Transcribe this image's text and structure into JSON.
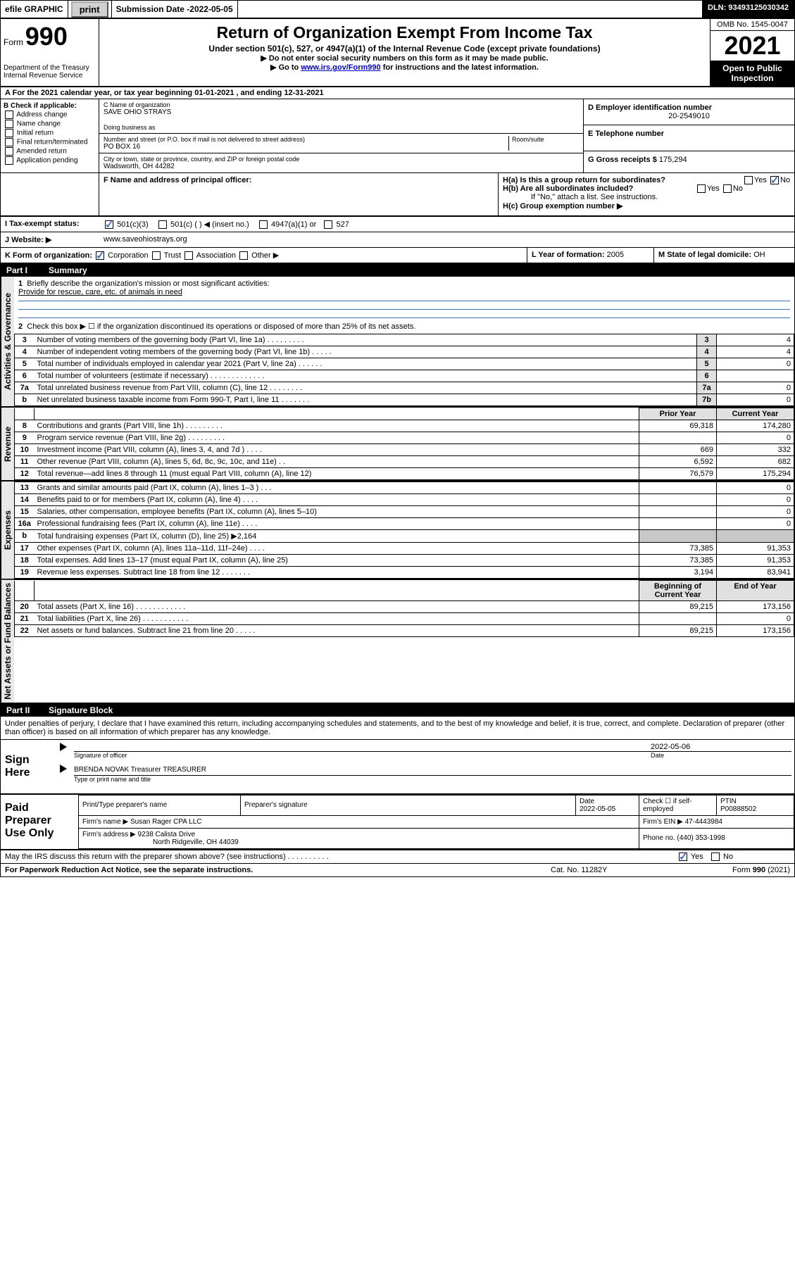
{
  "topbar": {
    "efile": "efile GRAPHIC",
    "print": "print",
    "subdate_label": "Submission Date - ",
    "subdate": "2022-05-05",
    "dln": "DLN: 93493125030342"
  },
  "header": {
    "form_word": "Form",
    "form_num": "990",
    "dept": "Department of the Treasury",
    "irs": "Internal Revenue Service",
    "title": "Return of Organization Exempt From Income Tax",
    "sub": "Under section 501(c), 527, or 4947(a)(1) of the Internal Revenue Code (except private foundations)",
    "inst1": "▶ Do not enter social security numbers on this form as it may be made public.",
    "inst2a": "▶ Go to ",
    "inst2link": "www.irs.gov/Form990",
    "inst2b": " for instructions and the latest information.",
    "omb": "OMB No. 1545-0047",
    "year": "2021",
    "open": "Open to Public Inspection"
  },
  "line_a": "For the 2021 calendar year, or tax year beginning 01-01-2021   , and ending 12-31-2021",
  "box_b": {
    "label": "B Check if applicable:",
    "opts": [
      "Address change",
      "Name change",
      "Initial return",
      "Final return/terminated",
      "Amended return",
      "Application pending"
    ]
  },
  "box_c": {
    "name_label": "C Name of organization",
    "name": "SAVE OHIO STRAYS",
    "dba_label": "Doing business as",
    "addr_label": "Number and street (or P.O. box if mail is not delivered to street address)",
    "room_label": "Room/suite",
    "addr": "PO BOX 16",
    "city_label": "City or town, state or province, country, and ZIP or foreign postal code",
    "city": "Wadsworth, OH  44282"
  },
  "box_d": {
    "label": "D Employer identification number",
    "val": "20-2549010"
  },
  "box_e": {
    "label": "E Telephone number"
  },
  "box_g": {
    "label": "G Gross receipts $",
    "val": "175,294"
  },
  "box_f": "F  Name and address of principal officer:",
  "box_h": {
    "ha": "H(a)  Is this a group return for subordinates?",
    "hb": "H(b)  Are all subordinates included?",
    "hb_note": "If \"No,\" attach a list. See instructions.",
    "hc": "H(c)  Group exemption number ▶"
  },
  "line_i": {
    "label": "I   Tax-exempt status:",
    "o1": "501(c)(3)",
    "o2": "501(c) (  ) ◀ (insert no.)",
    "o3": "4947(a)(1) or",
    "o4": "527"
  },
  "line_j": {
    "label": "J   Website: ▶",
    "val": "www.saveohiostrays.org"
  },
  "line_k": {
    "label": "K Form of organization:",
    "o1": "Corporation",
    "o2": "Trust",
    "o3": "Association",
    "o4": "Other ▶"
  },
  "line_l": {
    "label": "L Year of formation:",
    "val": "2005"
  },
  "line_m": {
    "label": "M State of legal domicile:",
    "val": "OH"
  },
  "part1": {
    "label": "Part I",
    "title": "Summary"
  },
  "summary": {
    "q1": "Briefly describe the organization's mission or most significant activities:",
    "q1a": "Provide for rescue, care, etc. of animals in need",
    "q2": "Check this box ▶ ☐  if the organization discontinued its operations or disposed of more than 25% of its net assets.",
    "rows_ag": [
      {
        "n": "3",
        "t": "Number of voting members of the governing body (Part VI, line 1a)   .   .   .   .   .   .   .   .   .",
        "b": "3",
        "v": "4"
      },
      {
        "n": "4",
        "t": "Number of independent voting members of the governing body (Part VI, line 1b)   .   .   .   .   .",
        "b": "4",
        "v": "4"
      },
      {
        "n": "5",
        "t": "Total number of individuals employed in calendar year 2021 (Part V, line 2a)   .   .   .   .   .   .",
        "b": "5",
        "v": "0"
      },
      {
        "n": "6",
        "t": "Total number of volunteers (estimate if necessary)   .   .   .   .   .   .   .   .   .   .   .   .   .",
        "b": "6",
        "v": ""
      },
      {
        "n": "7a",
        "t": "Total unrelated business revenue from Part VIII, column (C), line 12   .   .   .   .   .   .   .   .",
        "b": "7a",
        "v": "0"
      },
      {
        "n": "b",
        "t": "Net unrelated business taxable income from Form 990-T, Part I, line 11   .   .   .   .   .   .   .",
        "b": "7b",
        "v": "0"
      }
    ],
    "col_prior": "Prior Year",
    "col_current": "Current Year",
    "rev": [
      {
        "n": "8",
        "t": "Contributions and grants (Part VIII, line 1h)   .   .   .   .   .   .   .   .   .",
        "p": "69,318",
        "c": "174,280"
      },
      {
        "n": "9",
        "t": "Program service revenue (Part VIII, line 2g)   .   .   .   .   .   .   .   .   .",
        "p": "",
        "c": "0"
      },
      {
        "n": "10",
        "t": "Investment income (Part VIII, column (A), lines 3, 4, and 7d )   .   .   .   .",
        "p": "669",
        "c": "332"
      },
      {
        "n": "11",
        "t": "Other revenue (Part VIII, column (A), lines 5, 6d, 8c, 9c, 10c, and 11e)   .   .",
        "p": "6,592",
        "c": "682"
      },
      {
        "n": "12",
        "t": "Total revenue—add lines 8 through 11 (must equal Part VIII, column (A), line 12)",
        "p": "76,579",
        "c": "175,294"
      }
    ],
    "exp": [
      {
        "n": "13",
        "t": "Grants and similar amounts paid (Part IX, column (A), lines 1–3 )   .   .   .",
        "p": "",
        "c": "0"
      },
      {
        "n": "14",
        "t": "Benefits paid to or for members (Part IX, column (A), line 4)   .   .   .   .",
        "p": "",
        "c": "0"
      },
      {
        "n": "15",
        "t": "Salaries, other compensation, employee benefits (Part IX, column (A), lines 5–10)",
        "p": "",
        "c": "0"
      },
      {
        "n": "16a",
        "t": "Professional fundraising fees (Part IX, column (A), line 11e)   .   .   .   .",
        "p": "",
        "c": "0"
      },
      {
        "n": "b",
        "t": "Total fundraising expenses (Part IX, column (D), line 25) ▶2,164",
        "p": "shade",
        "c": "shade"
      },
      {
        "n": "17",
        "t": "Other expenses (Part IX, column (A), lines 11a–11d, 11f–24e)   .   .   .   .",
        "p": "73,385",
        "c": "91,353"
      },
      {
        "n": "18",
        "t": "Total expenses. Add lines 13–17 (must equal Part IX, column (A), line 25)",
        "p": "73,385",
        "c": "91,353"
      },
      {
        "n": "19",
        "t": "Revenue less expenses. Subtract line 18 from line 12   .   .   .   .   .   .   .",
        "p": "3,194",
        "c": "83,941"
      }
    ],
    "col_bcy": "Beginning of Current Year",
    "col_eoy": "End of Year",
    "na": [
      {
        "n": "20",
        "t": "Total assets (Part X, line 16)   .   .   .   .   .   .   .   .   .   .   .   .",
        "p": "89,215",
        "c": "173,156"
      },
      {
        "n": "21",
        "t": "Total liabilities (Part X, line 26)   .   .   .   .   .   .   .   .   .   .   .",
        "p": "",
        "c": "0"
      },
      {
        "n": "22",
        "t": "Net assets or fund balances. Subtract line 21 from line 20   .   .   .   .   .",
        "p": "89,215",
        "c": "173,156"
      }
    ]
  },
  "sidebars": {
    "ag": "Activities & Governance",
    "rev": "Revenue",
    "exp": "Expenses",
    "na": "Net Assets or Fund Balances"
  },
  "part2": {
    "label": "Part II",
    "title": "Signature Block"
  },
  "penalties": "Under penalties of perjury, I declare that I have examined this return, including accompanying schedules and statements, and to the best of my knowledge and belief, it is true, correct, and complete. Declaration of preparer (other than officer) is based on all information of which preparer has any knowledge.",
  "sign": {
    "here": "Sign Here",
    "sig_label": "Signature of officer",
    "date_label": "Date",
    "date": "2022-05-06",
    "name": "BRENDA NOVAK Treasurer  TREASURER",
    "name_label": "Type or print name and title"
  },
  "paid": {
    "title": "Paid Preparer Use Only",
    "h1": "Print/Type preparer's name",
    "h2": "Preparer's signature",
    "h3": "Date",
    "h3v": "2022-05-05",
    "h4": "Check ☐ if self-employed",
    "h5": "PTIN",
    "h5v": "P00888502",
    "firm_name_l": "Firm's name    ▶",
    "firm_name": "Susan Rager CPA LLC",
    "firm_ein_l": "Firm's EIN ▶",
    "firm_ein": "47-4443984",
    "firm_addr_l": "Firm's address ▶",
    "firm_addr1": "9238 Calista Drive",
    "firm_addr2": "North Ridgeville, OH  44039",
    "phone_l": "Phone no.",
    "phone": "(440) 353-1998"
  },
  "discuss": "May the IRS discuss this return with the preparer shown above? (see instructions)   .   .   .   .   .   .   .   .   .   .",
  "footer": {
    "pra": "For Paperwork Reduction Act Notice, see the separate instructions.",
    "cat": "Cat. No. 11282Y",
    "form": "Form 990 (2021)"
  },
  "yesno": {
    "yes": "Yes",
    "no": "No"
  }
}
